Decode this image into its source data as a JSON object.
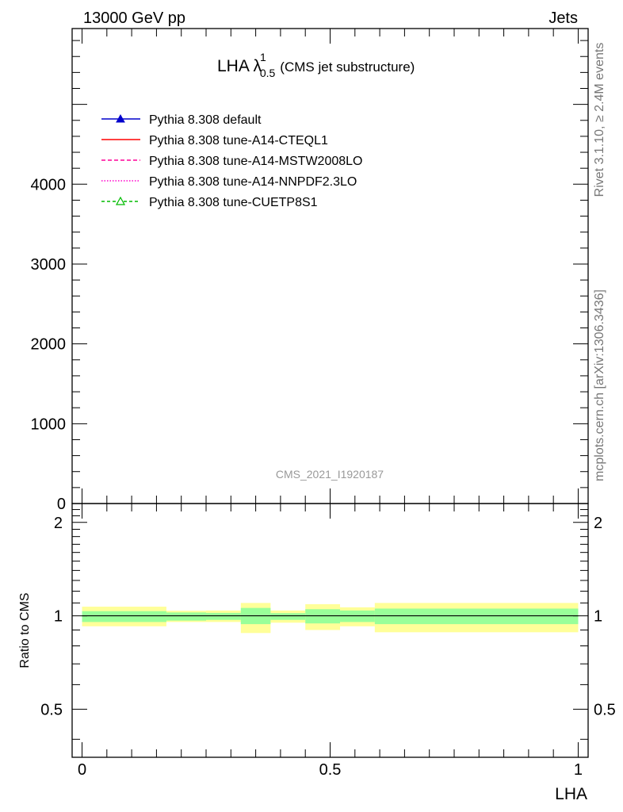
{
  "header": {
    "left": "13000 GeV pp",
    "right": "Jets"
  },
  "side_labels": {
    "rivet": "Rivet 3.1.10, ≥ 2.4M events",
    "mcplots": "mcplots.cern.ch [arXiv:1306.3436]"
  },
  "chart_data": [
    {
      "type": "line",
      "panel": "main",
      "title_main": "LHA λ",
      "title_sup": "1",
      "title_sub": "0.5",
      "title_suffix": "(CMS jet substructure)",
      "watermark": "CMS_2021_I1920187",
      "ylim": [
        0,
        5950
      ],
      "yticks": [
        0,
        1000,
        2000,
        3000,
        4000
      ],
      "ytick_labels": [
        "0",
        "1000",
        "2000",
        "3000",
        "4000"
      ],
      "xlim": [
        -0.02,
        1.02
      ],
      "legend": {
        "placement": "top-left",
        "entries": [
          {
            "label": "Pythia 8.308 default",
            "color": "#0000cc",
            "dash": "",
            "marker": "filled-triangle"
          },
          {
            "label": "Pythia 8.308 tune-A14-CTEQL1",
            "color": "#ff0000",
            "dash": "",
            "marker": "none"
          },
          {
            "label": "Pythia 8.308 tune-A14-MSTW2008LO",
            "color": "#ff0099",
            "dash": "5,3",
            "marker": "none"
          },
          {
            "label": "Pythia 8.308 tune-A14-NNPDF2.3LO",
            "color": "#ff00cc",
            "dash": "1.5,2",
            "marker": "none"
          },
          {
            "label": "Pythia 8.308 tune-CUETP8S1",
            "color": "#00bb00",
            "dash": "4,3",
            "marker": "open-triangle"
          }
        ]
      }
    },
    {
      "type": "area",
      "panel": "ratio",
      "ylabel": "Ratio to CMS",
      "xlabel": "LHA",
      "xlim": [
        -0.02,
        1.02
      ],
      "ylim": [
        0.35,
        2.3
      ],
      "log_y": true,
      "xticks": [
        0,
        0.5,
        1
      ],
      "xtick_labels": [
        "0",
        "0.5",
        "1"
      ],
      "yticks": [
        0.5,
        1,
        2
      ],
      "ytick_labels": [
        "0.5",
        "1",
        "2"
      ],
      "reference_line": 1,
      "bins": [
        {
          "x0": 0.0,
          "x1": 0.17,
          "inner": [
            0.955,
            1.035
          ],
          "outer": [
            0.925,
            1.07
          ]
        },
        {
          "x0": 0.17,
          "x1": 0.25,
          "inner": [
            0.965,
            1.025
          ],
          "outer": [
            0.955,
            1.038
          ]
        },
        {
          "x0": 0.25,
          "x1": 0.32,
          "inner": [
            0.97,
            1.022
          ],
          "outer": [
            0.955,
            1.04
          ]
        },
        {
          "x0": 0.32,
          "x1": 0.38,
          "inner": [
            0.94,
            1.06
          ],
          "outer": [
            0.88,
            1.1
          ]
        },
        {
          "x0": 0.38,
          "x1": 0.45,
          "inner": [
            0.97,
            1.02
          ],
          "outer": [
            0.95,
            1.04
          ]
        },
        {
          "x0": 0.45,
          "x1": 0.52,
          "inner": [
            0.945,
            1.05
          ],
          "outer": [
            0.9,
            1.09
          ]
        },
        {
          "x0": 0.52,
          "x1": 0.59,
          "inner": [
            0.955,
            1.04
          ],
          "outer": [
            0.925,
            1.065
          ]
        },
        {
          "x0": 0.59,
          "x1": 1.0,
          "inner": [
            0.94,
            1.055
          ],
          "outer": [
            0.885,
            1.1
          ]
        }
      ],
      "colors": {
        "inner": "#99ff99",
        "outer": "#ffff99"
      }
    }
  ]
}
